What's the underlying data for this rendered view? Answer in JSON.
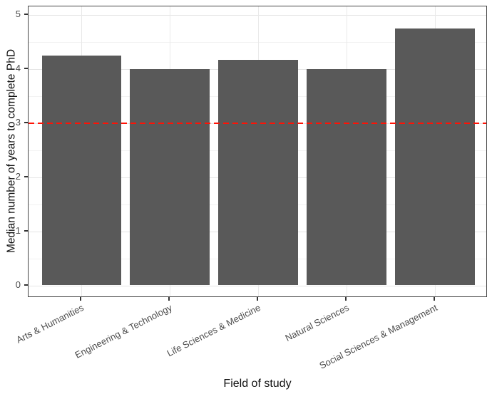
{
  "figure": {
    "kind": "ggplot-style bar chart",
    "background_color": "#ffffff",
    "panel_border_color": "#454545",
    "axis_text_color": "#4d4d4d"
  },
  "chart_data": {
    "type": "bar",
    "title": "",
    "categories": [
      "Arts & Humanities",
      "Engineering & Technology",
      "Life Sciences & Medicine",
      "Natural Sciences",
      "Social Sciences & Management"
    ],
    "values": [
      4.25,
      4.0,
      4.17,
      4.0,
      4.75
    ],
    "xlabel": "Field of study",
    "ylabel": "Median number of years to complete PhD",
    "ylim": [
      0,
      5
    ],
    "yticks": [
      0,
      1,
      2,
      3,
      4,
      5
    ],
    "bar_color": "#595959",
    "grid": true,
    "legend": false,
    "reference_line": {
      "value": 3,
      "style": "dashed",
      "color": "#ff1205"
    }
  }
}
